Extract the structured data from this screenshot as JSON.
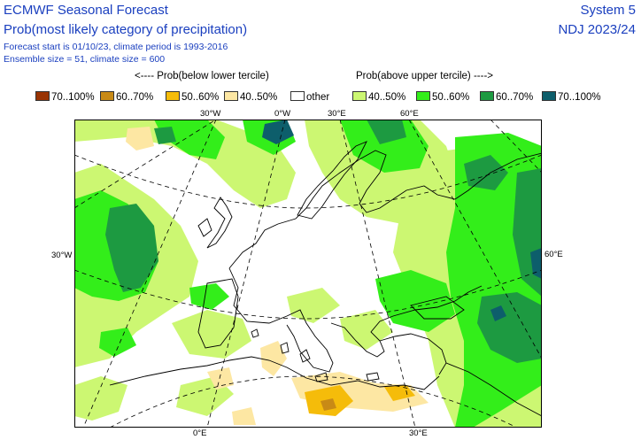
{
  "header": {
    "title": "ECMWF Seasonal Forecast",
    "subtitle": "Prob(most likely category of precipitation)",
    "meta_line1": "Forecast start is 01/10/23, climate period is 1993-2016",
    "meta_line2": "Ensemble size = 51, climate size = 600",
    "system": "System 5",
    "season": "NDJ 2023/24"
  },
  "legend": {
    "below_caption": "<---- Prob(below lower tercile)",
    "above_caption": "Prob(above upper tercile) ---->",
    "items": [
      {
        "label": "70..100%",
        "color": "#993404"
      },
      {
        "label": "60..70%",
        "color": "#c88a16"
      },
      {
        "label": "50..60%",
        "color": "#f5bc0a"
      },
      {
        "label": "40..50%",
        "color": "#fde7a3"
      },
      {
        "label": "other",
        "color": "#ffffff"
      },
      {
        "label": "40..50%",
        "color": "#ccf772"
      },
      {
        "label": "50..60%",
        "color": "#33ee1a"
      },
      {
        "label": "60..70%",
        "color": "#1d9a41"
      },
      {
        "label": "70..100%",
        "color": "#0d5e6b"
      }
    ]
  },
  "map": {
    "labels": {
      "top_30w": "30°W",
      "top_0": "0°W",
      "top_30e": "30°E",
      "top_60e": "60°E",
      "left_30w": "30°W",
      "right_60e": "60°E",
      "bottom_0": "0°E",
      "bottom_30e": "30°E"
    }
  }
}
